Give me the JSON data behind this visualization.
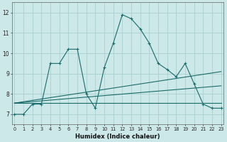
{
  "title": "",
  "xlabel": "Humidex (Indice chaleur)",
  "ylabel": "",
  "bg_color": "#cce8e8",
  "line_color": "#1a6b6b",
  "grid_color": "#aacfcf",
  "x_ticks": [
    0,
    1,
    2,
    3,
    4,
    5,
    6,
    7,
    8,
    9,
    10,
    11,
    12,
    13,
    14,
    15,
    16,
    17,
    18,
    19,
    20,
    21,
    22,
    23
  ],
  "y_ticks": [
    7,
    8,
    9,
    10,
    11,
    12
  ],
  "xlim": [
    -0.3,
    23.3
  ],
  "ylim": [
    6.5,
    12.5
  ],
  "series": [
    {
      "x": [
        0,
        1,
        2,
        3,
        4,
        5,
        6,
        7,
        8,
        9,
        10,
        11,
        12,
        13,
        14,
        15,
        16,
        17,
        18,
        19,
        20,
        21,
        22,
        23
      ],
      "y": [
        7.0,
        7.0,
        7.5,
        7.5,
        9.5,
        9.5,
        10.2,
        10.2,
        8.0,
        7.3,
        9.3,
        10.5,
        11.9,
        11.7,
        11.2,
        10.5,
        9.5,
        9.2,
        8.85,
        9.5,
        8.5,
        7.5,
        7.3,
        7.3
      ],
      "has_markers": true
    },
    {
      "x": [
        0,
        23
      ],
      "y": [
        7.55,
        9.1
      ],
      "has_markers": false
    },
    {
      "x": [
        0,
        23
      ],
      "y": [
        7.55,
        8.4
      ],
      "has_markers": false
    },
    {
      "x": [
        0,
        23
      ],
      "y": [
        7.55,
        7.55
      ],
      "has_markers": false
    }
  ]
}
